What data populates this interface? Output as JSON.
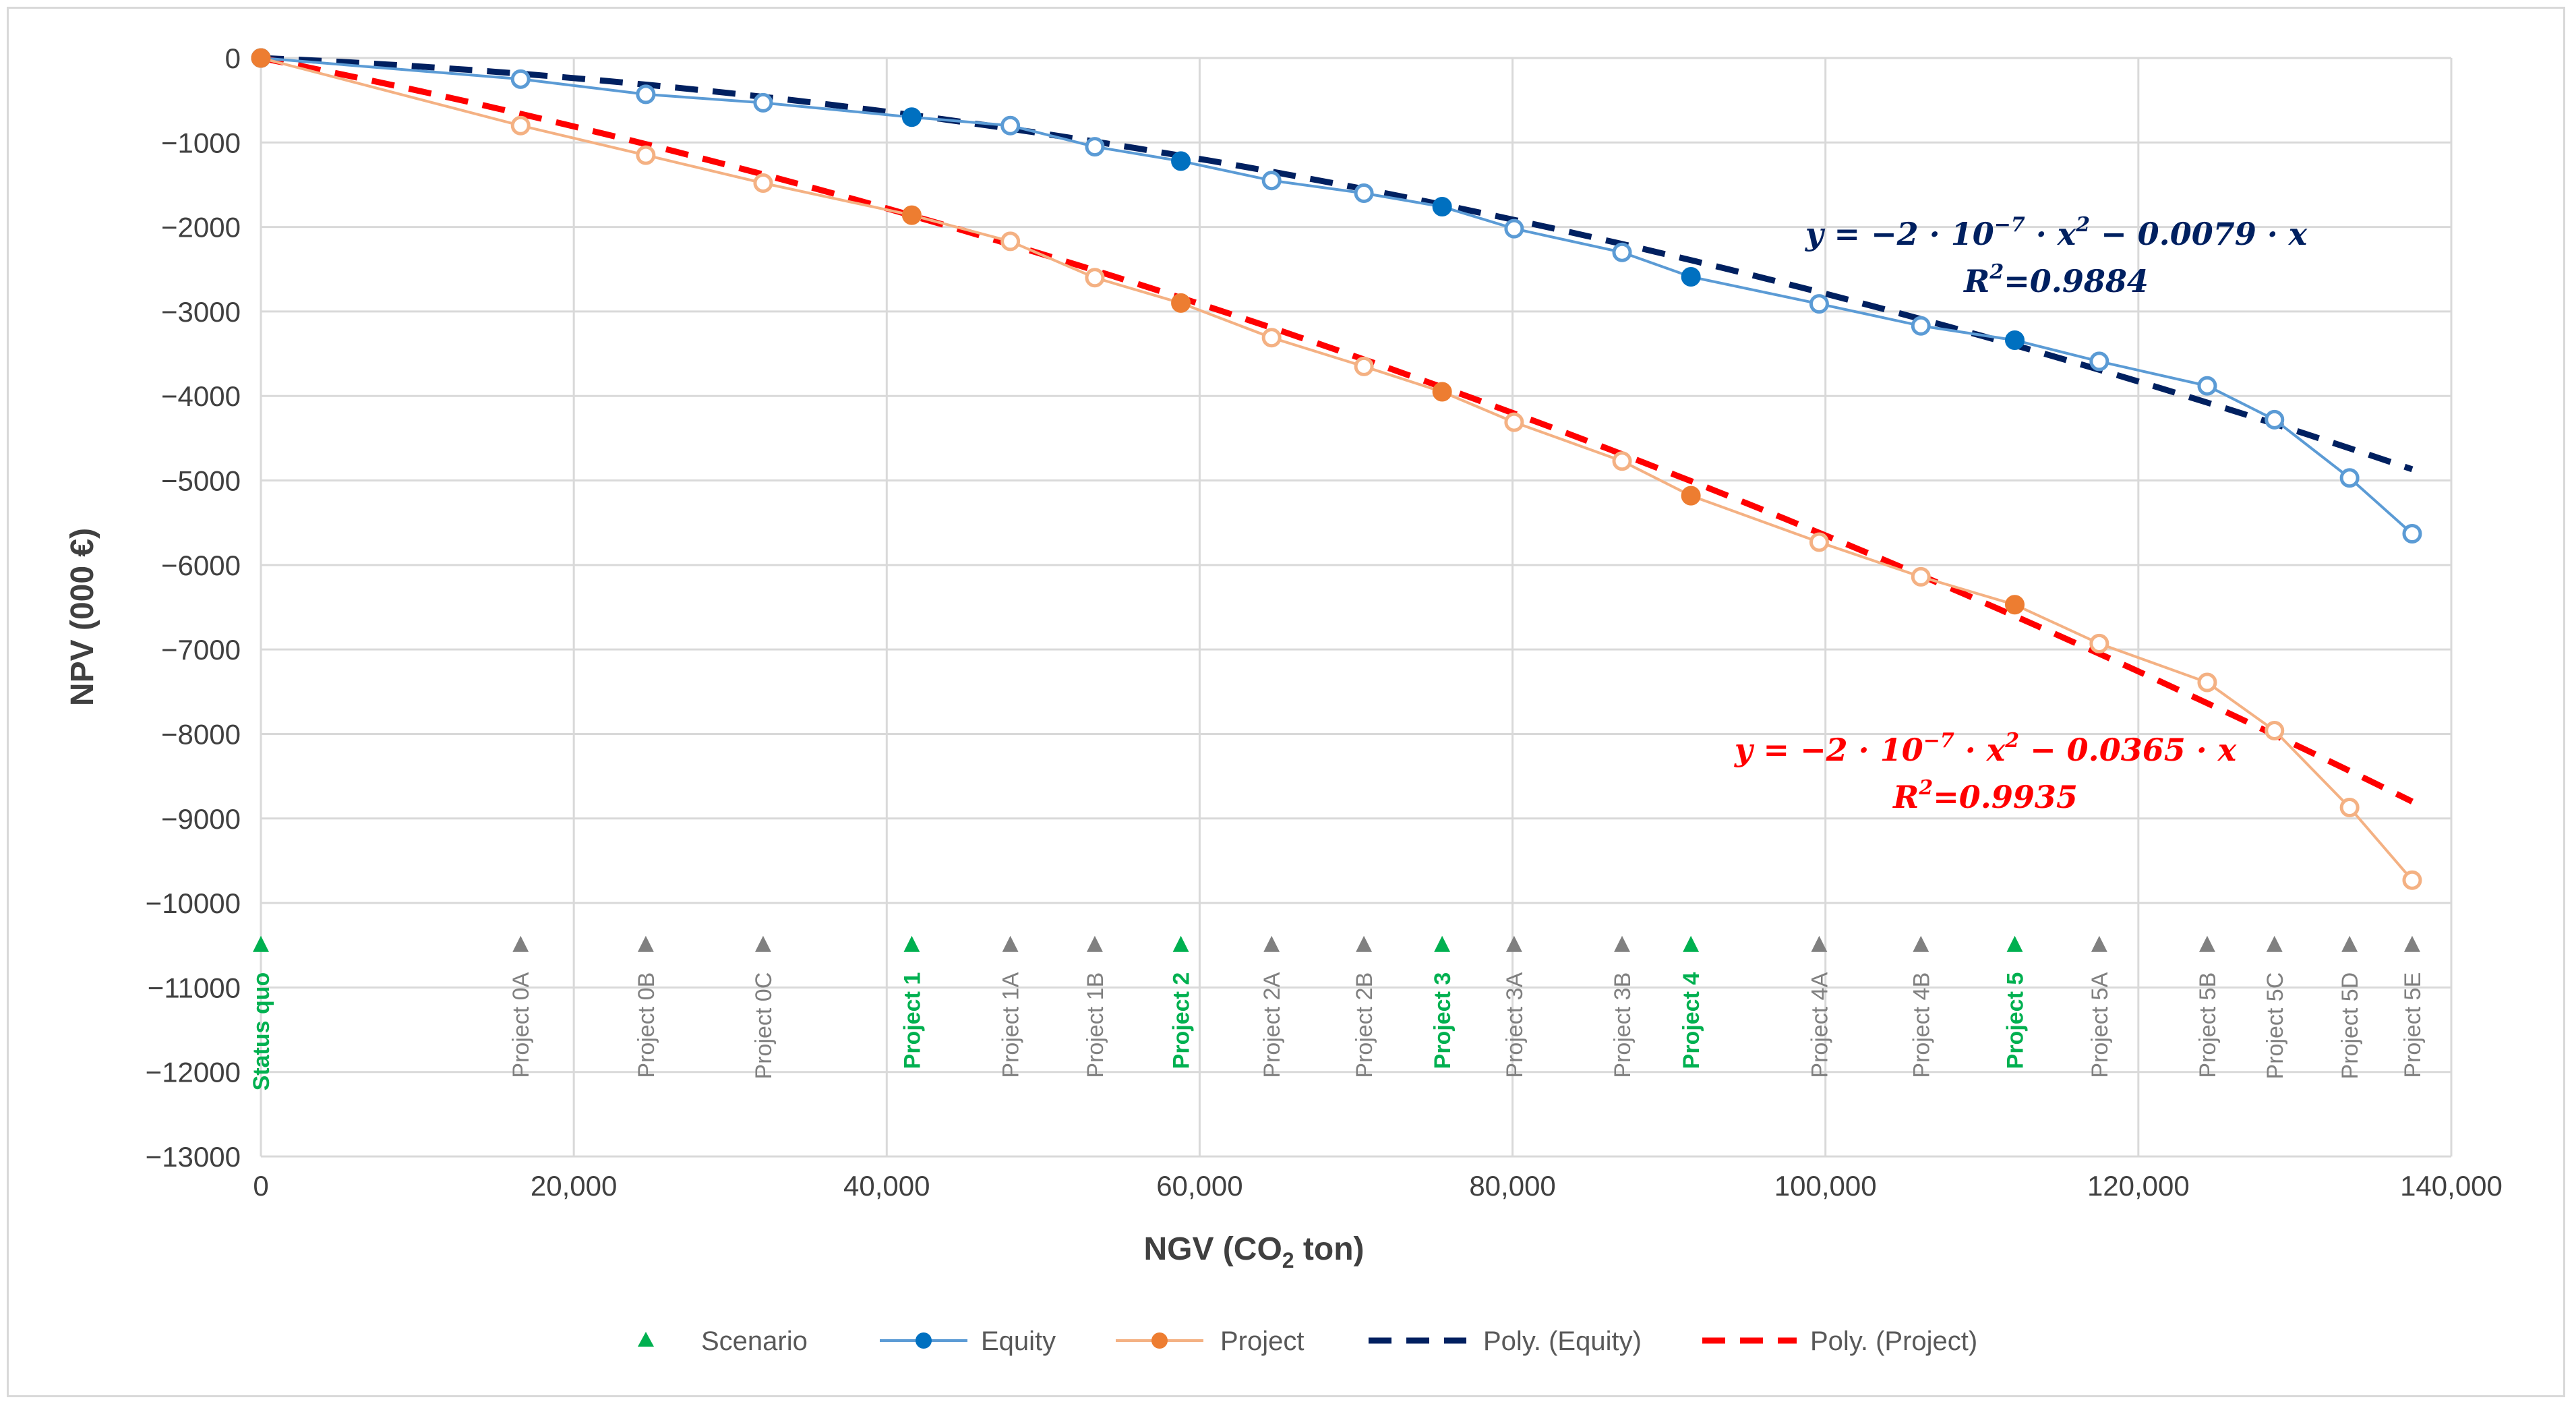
{
  "chart_data": {
    "type": "line",
    "xlabel": "NGV (CO",
    "xlabel_sub": "2",
    "xlabel_suffix": " ton)",
    "ylabel": "NPV (000 €)",
    "xlim": [
      0,
      140000
    ],
    "ylim": [
      -13000,
      0
    ],
    "x_ticks": [
      0,
      20000,
      40000,
      60000,
      80000,
      100000,
      120000,
      140000
    ],
    "x_tick_labels": [
      "0",
      "20,000",
      "40,000",
      "60,000",
      "80,000",
      "100,000",
      "120,000",
      "140,000"
    ],
    "y_ticks": [
      0,
      -1000,
      -2000,
      -3000,
      -4000,
      -5000,
      -6000,
      -7000,
      -8000,
      -9000,
      -10000,
      -11000,
      -12000,
      -13000
    ],
    "y_tick_labels": [
      "0",
      "−1000",
      "−2000",
      "−3000",
      "−4000",
      "−5000",
      "−6000",
      "−7000",
      "−8000",
      "−9000",
      "−10000",
      "−11000",
      "−12000",
      "−13000"
    ],
    "grid": true,
    "legend_position": "bottom",
    "colors": {
      "scenario_main": "#00b050",
      "scenario_other": "#808080",
      "equity": "#5b9bd5",
      "equity_filled": "#0070c0",
      "project": "#f4b183",
      "project_filled": "#ed7d31",
      "poly_equity": "#002060",
      "poly_project": "#ff0000",
      "grid": "#d9d9d9"
    },
    "scenario_marker_y": -10500,
    "scenarios": [
      {
        "label": "Status quo",
        "x": 0,
        "main": true
      },
      {
        "label": "Project 0A",
        "x": 16600,
        "main": false
      },
      {
        "label": "Project 0B",
        "x": 24600,
        "main": false
      },
      {
        "label": "Project 0C",
        "x": 32100,
        "main": false
      },
      {
        "label": "Project 1",
        "x": 41600,
        "main": true
      },
      {
        "label": "Project 1A",
        "x": 47900,
        "main": false
      },
      {
        "label": "Project 1B",
        "x": 53300,
        "main": false
      },
      {
        "label": "Project 2",
        "x": 58800,
        "main": true
      },
      {
        "label": "Project 2A",
        "x": 64600,
        "main": false
      },
      {
        "label": "Project 2B",
        "x": 70500,
        "main": false
      },
      {
        "label": "Project 3",
        "x": 75500,
        "main": true
      },
      {
        "label": "Project 3A",
        "x": 80100,
        "main": false
      },
      {
        "label": "Project 3B",
        "x": 87000,
        "main": false
      },
      {
        "label": "Project 4",
        "x": 91400,
        "main": true
      },
      {
        "label": "Project 4A",
        "x": 99600,
        "main": false
      },
      {
        "label": "Project 4B",
        "x": 106100,
        "main": false
      },
      {
        "label": "Project 5",
        "x": 112100,
        "main": true
      },
      {
        "label": "Project 5A",
        "x": 117500,
        "main": false
      },
      {
        "label": "Project 5B",
        "x": 124400,
        "main": false
      },
      {
        "label": "Project 5C",
        "x": 128700,
        "main": false
      },
      {
        "label": "Project 5D",
        "x": 133500,
        "main": false
      },
      {
        "label": "Project 5E",
        "x": 137500,
        "main": false
      }
    ],
    "series": [
      {
        "name": "Equity",
        "points": [
          {
            "x": 0,
            "y": 0,
            "filled": true
          },
          {
            "x": 16600,
            "y": -250,
            "filled": false
          },
          {
            "x": 24600,
            "y": -430,
            "filled": false
          },
          {
            "x": 32100,
            "y": -530,
            "filled": false
          },
          {
            "x": 41600,
            "y": -700,
            "filled": true
          },
          {
            "x": 47900,
            "y": -800,
            "filled": false
          },
          {
            "x": 53300,
            "y": -1050,
            "filled": false
          },
          {
            "x": 58800,
            "y": -1220,
            "filled": true
          },
          {
            "x": 64600,
            "y": -1450,
            "filled": false
          },
          {
            "x": 70500,
            "y": -1600,
            "filled": false
          },
          {
            "x": 75500,
            "y": -1760,
            "filled": true
          },
          {
            "x": 80100,
            "y": -2020,
            "filled": false
          },
          {
            "x": 87000,
            "y": -2300,
            "filled": false
          },
          {
            "x": 91400,
            "y": -2590,
            "filled": true
          },
          {
            "x": 99600,
            "y": -2910,
            "filled": false
          },
          {
            "x": 106100,
            "y": -3170,
            "filled": false
          },
          {
            "x": 112100,
            "y": -3340,
            "filled": true
          },
          {
            "x": 117500,
            "y": -3590,
            "filled": false
          },
          {
            "x": 124400,
            "y": -3880,
            "filled": false
          },
          {
            "x": 128700,
            "y": -4280,
            "filled": false
          },
          {
            "x": 133500,
            "y": -4970,
            "filled": false
          },
          {
            "x": 137500,
            "y": -5630,
            "filled": false
          }
        ]
      },
      {
        "name": "Project",
        "points": [
          {
            "x": 0,
            "y": 0,
            "filled": true
          },
          {
            "x": 16600,
            "y": -800,
            "filled": false
          },
          {
            "x": 24600,
            "y": -1150,
            "filled": false
          },
          {
            "x": 32100,
            "y": -1480,
            "filled": false
          },
          {
            "x": 41600,
            "y": -1860,
            "filled": true
          },
          {
            "x": 47900,
            "y": -2170,
            "filled": false
          },
          {
            "x": 53300,
            "y": -2600,
            "filled": false
          },
          {
            "x": 58800,
            "y": -2900,
            "filled": true
          },
          {
            "x": 64600,
            "y": -3310,
            "filled": false
          },
          {
            "x": 70500,
            "y": -3650,
            "filled": false
          },
          {
            "x": 75500,
            "y": -3950,
            "filled": true
          },
          {
            "x": 80100,
            "y": -4310,
            "filled": false
          },
          {
            "x": 87000,
            "y": -4770,
            "filled": false
          },
          {
            "x": 91400,
            "y": -5180,
            "filled": true
          },
          {
            "x": 99600,
            "y": -5730,
            "filled": false
          },
          {
            "x": 106100,
            "y": -6140,
            "filled": false
          },
          {
            "x": 112100,
            "y": -6470,
            "filled": true
          },
          {
            "x": 117500,
            "y": -6930,
            "filled": false
          },
          {
            "x": 124400,
            "y": -7390,
            "filled": false
          },
          {
            "x": 128700,
            "y": -7960,
            "filled": false
          },
          {
            "x": 133500,
            "y": -8870,
            "filled": false
          },
          {
            "x": 137500,
            "y": -9730,
            "filled": false
          }
        ]
      }
    ],
    "trendlines": [
      {
        "name": "Poly. (Equity)",
        "a": -2e-07,
        "b": -0.0079,
        "x_end": 137500,
        "eq_text": "y = −2 · 10",
        "eq_exp": "−7",
        "eq_rest": " · x",
        "eq_rest_exp": "2",
        "eq_tail": " − 0.0079 · x",
        "r2_text": "R",
        "r2_exp": "2",
        "r2_value": "=0.9884"
      },
      {
        "name": "Poly. (Project)",
        "a": -2e-07,
        "b": -0.0365,
        "x_end": 137500,
        "eq_text": "y = −2 · 10",
        "eq_exp": "−7",
        "eq_rest": " · x",
        "eq_rest_exp": "2",
        "eq_tail": " − 0.0365 · x",
        "r2_text": "R",
        "r2_exp": "2",
        "r2_value": "=0.9935"
      }
    ],
    "legend": [
      "Scenario",
      "Equity",
      "Project",
      "Poly. (Equity)",
      "Poly. (Project)"
    ]
  }
}
